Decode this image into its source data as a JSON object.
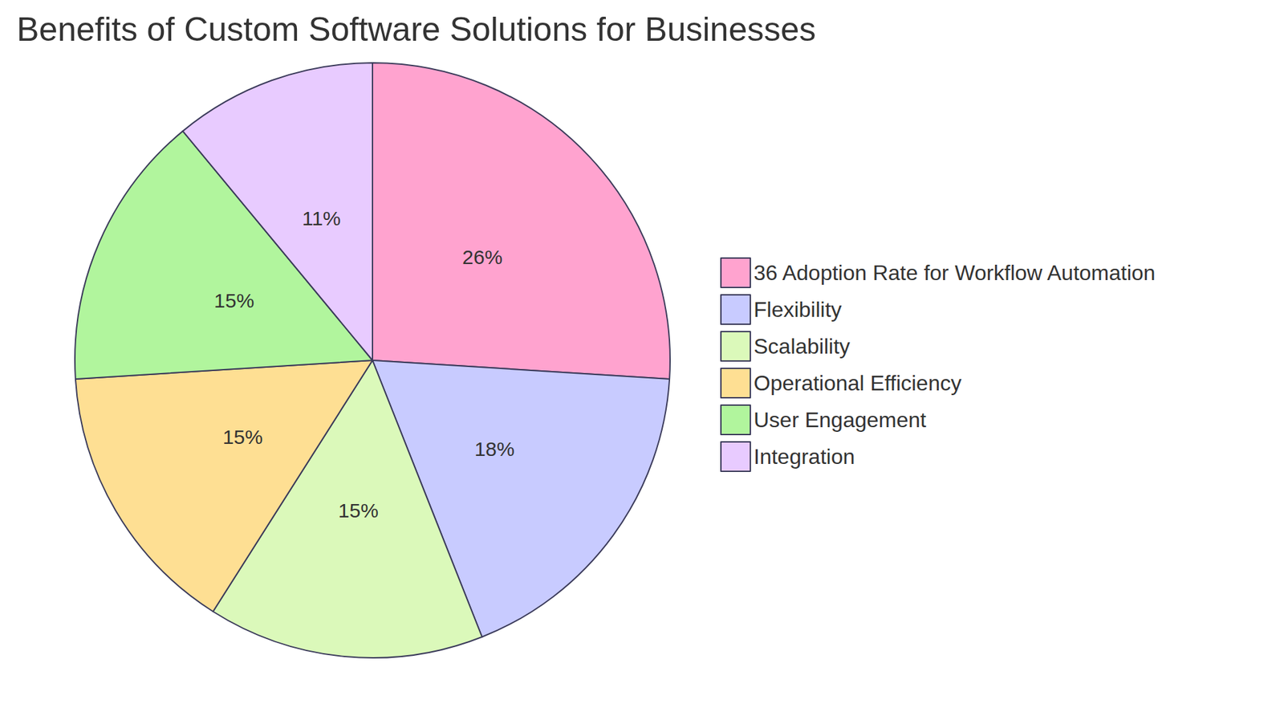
{
  "chart_data": {
    "type": "pie",
    "title": "Benefits of Custom Software Solutions for Businesses",
    "categories": [
      "36 Adoption Rate for Workflow Automation",
      "Flexibility",
      "Scalability",
      "Operational Efficiency",
      "User Engagement",
      "Integration"
    ],
    "values": [
      26,
      18,
      15,
      15,
      15,
      11
    ],
    "value_labels": [
      "26%",
      "18%",
      "15%",
      "15%",
      "15%",
      "11%"
    ],
    "colors": [
      "#ffa3cf",
      "#c8cbff",
      "#dbf9ba",
      "#fedf93",
      "#b1f59d",
      "#e8cbff"
    ],
    "data_labels": true,
    "legend": "right"
  }
}
